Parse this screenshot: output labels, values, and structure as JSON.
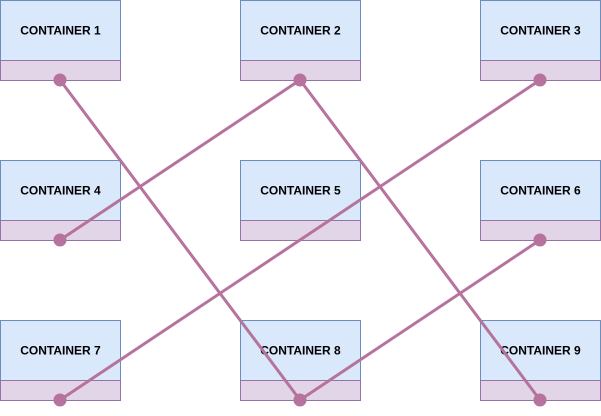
{
  "diagram": {
    "colors": {
      "box_fill": "#dae8fc",
      "box_stroke": "#6c8ebf",
      "footer_fill": "#e1d5e7",
      "footer_stroke": "#9673a6",
      "connector": "#b5739d"
    },
    "containers": [
      {
        "label": "CONTAINER 1"
      },
      {
        "label": "CONTAINER 2"
      },
      {
        "label": "CONTAINER 3"
      },
      {
        "label": "CONTAINER 4"
      },
      {
        "label": "CONTAINER 5"
      },
      {
        "label": "CONTAINER 6"
      },
      {
        "label": "CONTAINER 7"
      },
      {
        "label": "CONTAINER 8"
      },
      {
        "label": "CONTAINER 9"
      }
    ],
    "connections": [
      {
        "from": 1,
        "to": 8
      },
      {
        "from": 2,
        "to": 4
      },
      {
        "from": 2,
        "to": 9
      },
      {
        "from": 3,
        "to": 7
      },
      {
        "from": 6,
        "to": 8
      }
    ]
  }
}
